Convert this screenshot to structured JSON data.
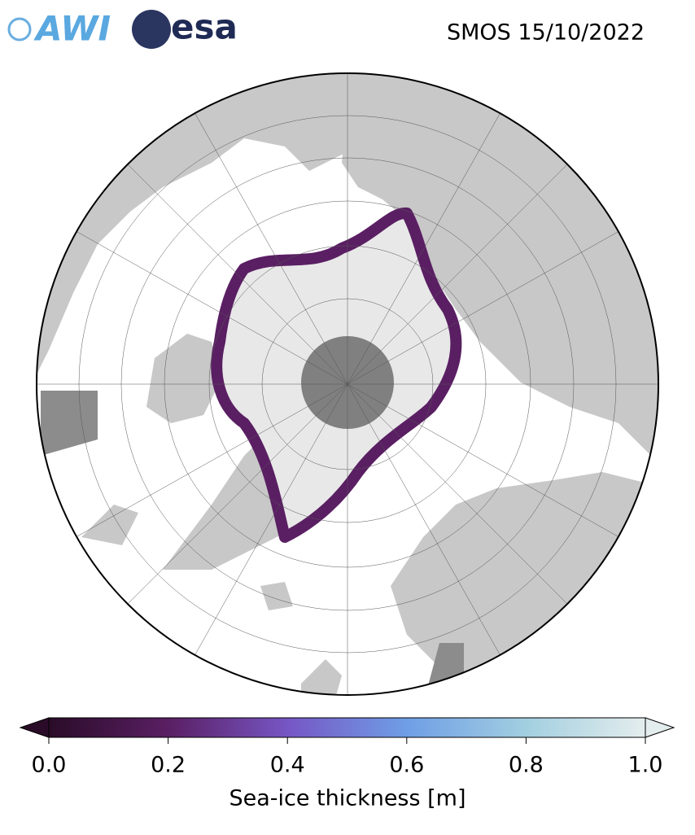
{
  "title": "SMOS 15/10/2022",
  "logos": [
    "AWI",
    "esa"
  ],
  "colorbar": {
    "label": "Sea-ice thickness [m]",
    "lim": [
      0,
      1
    ],
    "ticks": [
      {
        "value": 0,
        "label": "0.0"
      },
      0.2,
      0.4,
      0.6,
      0.8,
      {
        "value": 1,
        "label": "1.0"
      }
    ],
    "colors": [
      "#2a0c28",
      "#5a1f63",
      "#7656c4",
      "#6f9ee6",
      "#a2cfe0",
      "#e4eded"
    ]
  }
}
